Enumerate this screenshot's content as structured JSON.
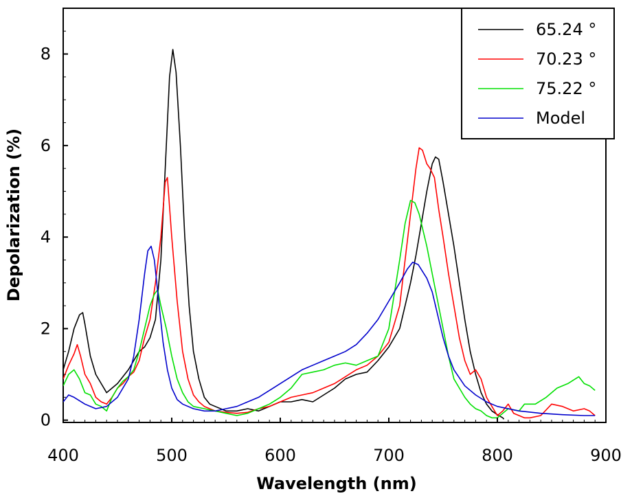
{
  "chart_data": {
    "type": "line",
    "title": "",
    "xlabel": "Wavelength (nm)",
    "ylabel": "Depolarization (%)",
    "xlim": [
      400,
      900
    ],
    "ylim": [
      -0.05,
      9
    ],
    "xticks": [
      400,
      500,
      600,
      700,
      800,
      900
    ],
    "yticks": [
      0,
      2,
      4,
      6,
      8
    ],
    "grid": false,
    "legend_position": "top-right",
    "series": [
      {
        "name": "65.24 °",
        "color": "#000000",
        "points": [
          [
            400,
            1.1
          ],
          [
            405,
            1.5
          ],
          [
            410,
            2.0
          ],
          [
            415,
            2.3
          ],
          [
            418,
            2.35
          ],
          [
            420,
            2.1
          ],
          [
            425,
            1.4
          ],
          [
            430,
            1.0
          ],
          [
            435,
            0.8
          ],
          [
            440,
            0.6
          ],
          [
            445,
            0.7
          ],
          [
            450,
            0.8
          ],
          [
            455,
            0.95
          ],
          [
            460,
            1.1
          ],
          [
            465,
            1.3
          ],
          [
            470,
            1.5
          ],
          [
            475,
            1.6
          ],
          [
            480,
            1.8
          ],
          [
            485,
            2.2
          ],
          [
            490,
            3.5
          ],
          [
            495,
            6.0
          ],
          [
            498,
            7.5
          ],
          [
            501,
            8.1
          ],
          [
            504,
            7.6
          ],
          [
            508,
            6.0
          ],
          [
            512,
            4.0
          ],
          [
            516,
            2.5
          ],
          [
            520,
            1.5
          ],
          [
            525,
            0.9
          ],
          [
            530,
            0.5
          ],
          [
            535,
            0.35
          ],
          [
            540,
            0.3
          ],
          [
            550,
            0.2
          ],
          [
            560,
            0.2
          ],
          [
            570,
            0.25
          ],
          [
            580,
            0.2
          ],
          [
            590,
            0.3
          ],
          [
            600,
            0.4
          ],
          [
            610,
            0.4
          ],
          [
            620,
            0.45
          ],
          [
            630,
            0.4
          ],
          [
            640,
            0.55
          ],
          [
            650,
            0.7
          ],
          [
            660,
            0.9
          ],
          [
            670,
            1.0
          ],
          [
            680,
            1.05
          ],
          [
            690,
            1.3
          ],
          [
            700,
            1.6
          ],
          [
            710,
            2.0
          ],
          [
            715,
            2.5
          ],
          [
            720,
            3.0
          ],
          [
            725,
            3.6
          ],
          [
            730,
            4.3
          ],
          [
            735,
            5.0
          ],
          [
            740,
            5.6
          ],
          [
            743,
            5.75
          ],
          [
            746,
            5.7
          ],
          [
            750,
            5.2
          ],
          [
            755,
            4.5
          ],
          [
            760,
            3.8
          ],
          [
            765,
            3.0
          ],
          [
            770,
            2.2
          ],
          [
            775,
            1.5
          ],
          [
            780,
            1.0
          ],
          [
            785,
            0.6
          ],
          [
            790,
            0.35
          ],
          [
            795,
            0.2
          ],
          [
            800,
            0.12
          ],
          [
            805,
            0.05
          ],
          [
            806,
            0.02
          ]
        ]
      },
      {
        "name": "70.23 °",
        "color": "#ff0000",
        "points": [
          [
            400,
            0.9
          ],
          [
            405,
            1.2
          ],
          [
            410,
            1.45
          ],
          [
            413,
            1.65
          ],
          [
            416,
            1.4
          ],
          [
            420,
            1.0
          ],
          [
            425,
            0.8
          ],
          [
            430,
            0.5
          ],
          [
            435,
            0.4
          ],
          [
            440,
            0.35
          ],
          [
            445,
            0.5
          ],
          [
            450,
            0.7
          ],
          [
            455,
            0.8
          ],
          [
            460,
            0.95
          ],
          [
            465,
            1.05
          ],
          [
            470,
            1.3
          ],
          [
            475,
            1.8
          ],
          [
            480,
            2.2
          ],
          [
            485,
            3.0
          ],
          [
            490,
            4.0
          ],
          [
            494,
            5.2
          ],
          [
            496,
            5.3
          ],
          [
            500,
            4.0
          ],
          [
            505,
            2.6
          ],
          [
            510,
            1.5
          ],
          [
            515,
            0.9
          ],
          [
            520,
            0.55
          ],
          [
            525,
            0.4
          ],
          [
            530,
            0.3
          ],
          [
            540,
            0.2
          ],
          [
            550,
            0.17
          ],
          [
            560,
            0.15
          ],
          [
            570,
            0.17
          ],
          [
            580,
            0.25
          ],
          [
            590,
            0.3
          ],
          [
            600,
            0.4
          ],
          [
            610,
            0.5
          ],
          [
            620,
            0.55
          ],
          [
            630,
            0.6
          ],
          [
            640,
            0.7
          ],
          [
            650,
            0.8
          ],
          [
            660,
            0.95
          ],
          [
            670,
            1.1
          ],
          [
            680,
            1.2
          ],
          [
            690,
            1.4
          ],
          [
            700,
            1.7
          ],
          [
            710,
            2.5
          ],
          [
            715,
            3.5
          ],
          [
            720,
            4.5
          ],
          [
            725,
            5.5
          ],
          [
            728,
            5.95
          ],
          [
            731,
            5.9
          ],
          [
            735,
            5.6
          ],
          [
            738,
            5.5
          ],
          [
            742,
            5.3
          ],
          [
            746,
            4.6
          ],
          [
            750,
            4.0
          ],
          [
            755,
            3.2
          ],
          [
            760,
            2.5
          ],
          [
            765,
            1.8
          ],
          [
            770,
            1.3
          ],
          [
            775,
            1.0
          ],
          [
            780,
            1.1
          ],
          [
            785,
            0.9
          ],
          [
            790,
            0.5
          ],
          [
            795,
            0.3
          ],
          [
            800,
            0.1
          ],
          [
            805,
            0.2
          ],
          [
            810,
            0.35
          ],
          [
            815,
            0.15
          ],
          [
            820,
            0.1
          ],
          [
            825,
            0.05
          ],
          [
            830,
            0.05
          ],
          [
            840,
            0.1
          ],
          [
            850,
            0.35
          ],
          [
            860,
            0.3
          ],
          [
            870,
            0.2
          ],
          [
            880,
            0.25
          ],
          [
            885,
            0.2
          ],
          [
            890,
            0.1
          ]
        ]
      },
      {
        "name": "75.22 °",
        "color": "#00e000",
        "points": [
          [
            400,
            0.75
          ],
          [
            405,
            1.0
          ],
          [
            410,
            1.1
          ],
          [
            415,
            0.9
          ],
          [
            420,
            0.6
          ],
          [
            425,
            0.55
          ],
          [
            430,
            0.35
          ],
          [
            435,
            0.3
          ],
          [
            440,
            0.2
          ],
          [
            445,
            0.5
          ],
          [
            450,
            0.7
          ],
          [
            455,
            0.85
          ],
          [
            460,
            0.95
          ],
          [
            465,
            1.1
          ],
          [
            470,
            1.5
          ],
          [
            475,
            2.0
          ],
          [
            480,
            2.5
          ],
          [
            484,
            2.75
          ],
          [
            487,
            2.85
          ],
          [
            490,
            2.5
          ],
          [
            495,
            2.0
          ],
          [
            500,
            1.4
          ],
          [
            505,
            0.9
          ],
          [
            510,
            0.6
          ],
          [
            515,
            0.4
          ],
          [
            520,
            0.3
          ],
          [
            530,
            0.25
          ],
          [
            540,
            0.2
          ],
          [
            550,
            0.15
          ],
          [
            560,
            0.1
          ],
          [
            570,
            0.15
          ],
          [
            580,
            0.25
          ],
          [
            590,
            0.35
          ],
          [
            600,
            0.5
          ],
          [
            610,
            0.7
          ],
          [
            620,
            1.0
          ],
          [
            630,
            1.05
          ],
          [
            640,
            1.1
          ],
          [
            650,
            1.2
          ],
          [
            660,
            1.25
          ],
          [
            670,
            1.2
          ],
          [
            680,
            1.3
          ],
          [
            690,
            1.4
          ],
          [
            700,
            2.0
          ],
          [
            710,
            3.5
          ],
          [
            715,
            4.3
          ],
          [
            720,
            4.8
          ],
          [
            724,
            4.75
          ],
          [
            728,
            4.5
          ],
          [
            735,
            3.8
          ],
          [
            740,
            3.2
          ],
          [
            745,
            2.6
          ],
          [
            750,
            2.0
          ],
          [
            755,
            1.4
          ],
          [
            760,
            0.9
          ],
          [
            765,
            0.7
          ],
          [
            770,
            0.5
          ],
          [
            775,
            0.35
          ],
          [
            780,
            0.25
          ],
          [
            785,
            0.2
          ],
          [
            790,
            0.1
          ],
          [
            795,
            0.05
          ],
          [
            800,
            0.05
          ],
          [
            810,
            0.25
          ],
          [
            820,
            0.2
          ],
          [
            825,
            0.35
          ],
          [
            835,
            0.35
          ],
          [
            845,
            0.5
          ],
          [
            855,
            0.7
          ],
          [
            865,
            0.8
          ],
          [
            875,
            0.95
          ],
          [
            880,
            0.8
          ],
          [
            885,
            0.75
          ],
          [
            890,
            0.65
          ]
        ]
      },
      {
        "name": "Model",
        "color": "#0000cc",
        "points": [
          [
            400,
            0.4
          ],
          [
            405,
            0.55
          ],
          [
            410,
            0.5
          ],
          [
            420,
            0.35
          ],
          [
            430,
            0.25
          ],
          [
            440,
            0.3
          ],
          [
            450,
            0.5
          ],
          [
            460,
            0.9
          ],
          [
            465,
            1.4
          ],
          [
            470,
            2.2
          ],
          [
            475,
            3.2
          ],
          [
            478,
            3.7
          ],
          [
            481,
            3.8
          ],
          [
            484,
            3.5
          ],
          [
            488,
            2.6
          ],
          [
            492,
            1.7
          ],
          [
            496,
            1.1
          ],
          [
            500,
            0.7
          ],
          [
            505,
            0.45
          ],
          [
            510,
            0.35
          ],
          [
            520,
            0.25
          ],
          [
            530,
            0.2
          ],
          [
            540,
            0.2
          ],
          [
            550,
            0.25
          ],
          [
            560,
            0.3
          ],
          [
            570,
            0.4
          ],
          [
            580,
            0.5
          ],
          [
            590,
            0.65
          ],
          [
            600,
            0.8
          ],
          [
            610,
            0.95
          ],
          [
            620,
            1.1
          ],
          [
            630,
            1.2
          ],
          [
            640,
            1.3
          ],
          [
            650,
            1.4
          ],
          [
            660,
            1.5
          ],
          [
            670,
            1.65
          ],
          [
            680,
            1.9
          ],
          [
            690,
            2.2
          ],
          [
            700,
            2.6
          ],
          [
            710,
            3.0
          ],
          [
            717,
            3.3
          ],
          [
            722,
            3.45
          ],
          [
            727,
            3.4
          ],
          [
            735,
            3.1
          ],
          [
            740,
            2.8
          ],
          [
            745,
            2.3
          ],
          [
            750,
            1.8
          ],
          [
            755,
            1.4
          ],
          [
            760,
            1.1
          ],
          [
            770,
            0.75
          ],
          [
            780,
            0.55
          ],
          [
            790,
            0.4
          ],
          [
            800,
            0.3
          ],
          [
            820,
            0.2
          ],
          [
            840,
            0.15
          ],
          [
            860,
            0.12
          ],
          [
            880,
            0.1
          ],
          [
            890,
            0.1
          ]
        ]
      }
    ]
  }
}
